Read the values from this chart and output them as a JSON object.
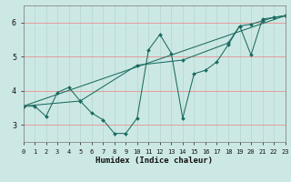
{
  "xlabel": "Humidex (Indice chaleur)",
  "bg_color": "#cce8e4",
  "line_color": "#1a6b60",
  "xlim": [
    0,
    23
  ],
  "ylim": [
    2.5,
    6.5
  ],
  "xticks": [
    0,
    1,
    2,
    3,
    4,
    5,
    6,
    7,
    8,
    9,
    10,
    11,
    12,
    13,
    14,
    15,
    16,
    17,
    18,
    19,
    20,
    21,
    22,
    23
  ],
  "yticks": [
    3,
    4,
    5,
    6
  ],
  "hgrid_color": "#e89090",
  "vgrid_color": "#b8d8d4",
  "lines": [
    {
      "x": [
        0,
        23
      ],
      "y": [
        3.55,
        6.2
      ]
    },
    {
      "x": [
        0,
        5,
        10,
        14,
        18,
        19,
        20,
        21,
        22,
        23
      ],
      "y": [
        3.55,
        3.7,
        4.75,
        4.9,
        5.4,
        5.9,
        5.95,
        6.05,
        6.15,
        6.2
      ]
    },
    {
      "x": [
        0,
        1,
        2,
        3,
        4,
        5,
        6,
        7,
        8,
        9,
        10,
        11,
        12,
        13,
        14,
        15,
        16,
        17,
        18,
        19,
        20,
        21,
        22,
        23
      ],
      "y": [
        3.55,
        3.55,
        3.25,
        3.95,
        4.1,
        3.7,
        3.35,
        3.15,
        2.75,
        2.75,
        3.2,
        5.2,
        5.65,
        5.1,
        3.2,
        4.5,
        4.6,
        4.85,
        5.35,
        5.9,
        5.05,
        6.1,
        6.15,
        6.2
      ]
    }
  ]
}
